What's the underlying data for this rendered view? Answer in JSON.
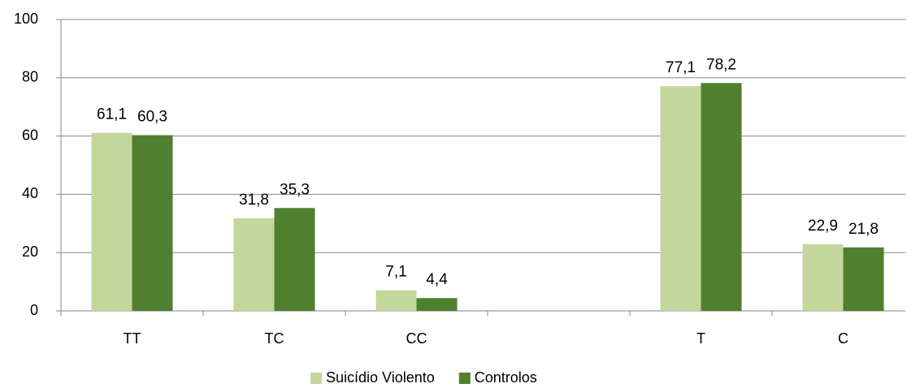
{
  "chart_data": {
    "type": "bar",
    "categories": [
      "TT",
      "TC",
      "CC",
      null,
      "T",
      "C"
    ],
    "series": [
      {
        "name": "Suicídio Violento",
        "color": "#c3d69b",
        "values": [
          61.1,
          31.8,
          7.1,
          null,
          77.1,
          22.9
        ],
        "value_labels": [
          "61,1",
          "31,8",
          "7,1",
          null,
          "77,1",
          "22,9"
        ]
      },
      {
        "name": "Controlos",
        "color": "#4f7f2f",
        "values": [
          60.3,
          35.3,
          4.4,
          null,
          78.2,
          21.8
        ],
        "value_labels": [
          "60,3",
          "35,3",
          "4,4",
          null,
          "78,2",
          "21,8"
        ]
      }
    ],
    "ylim": [
      0,
      100
    ],
    "yticks": [
      0,
      20,
      40,
      60,
      80,
      100
    ],
    "grid": true,
    "legend": "bottom"
  }
}
